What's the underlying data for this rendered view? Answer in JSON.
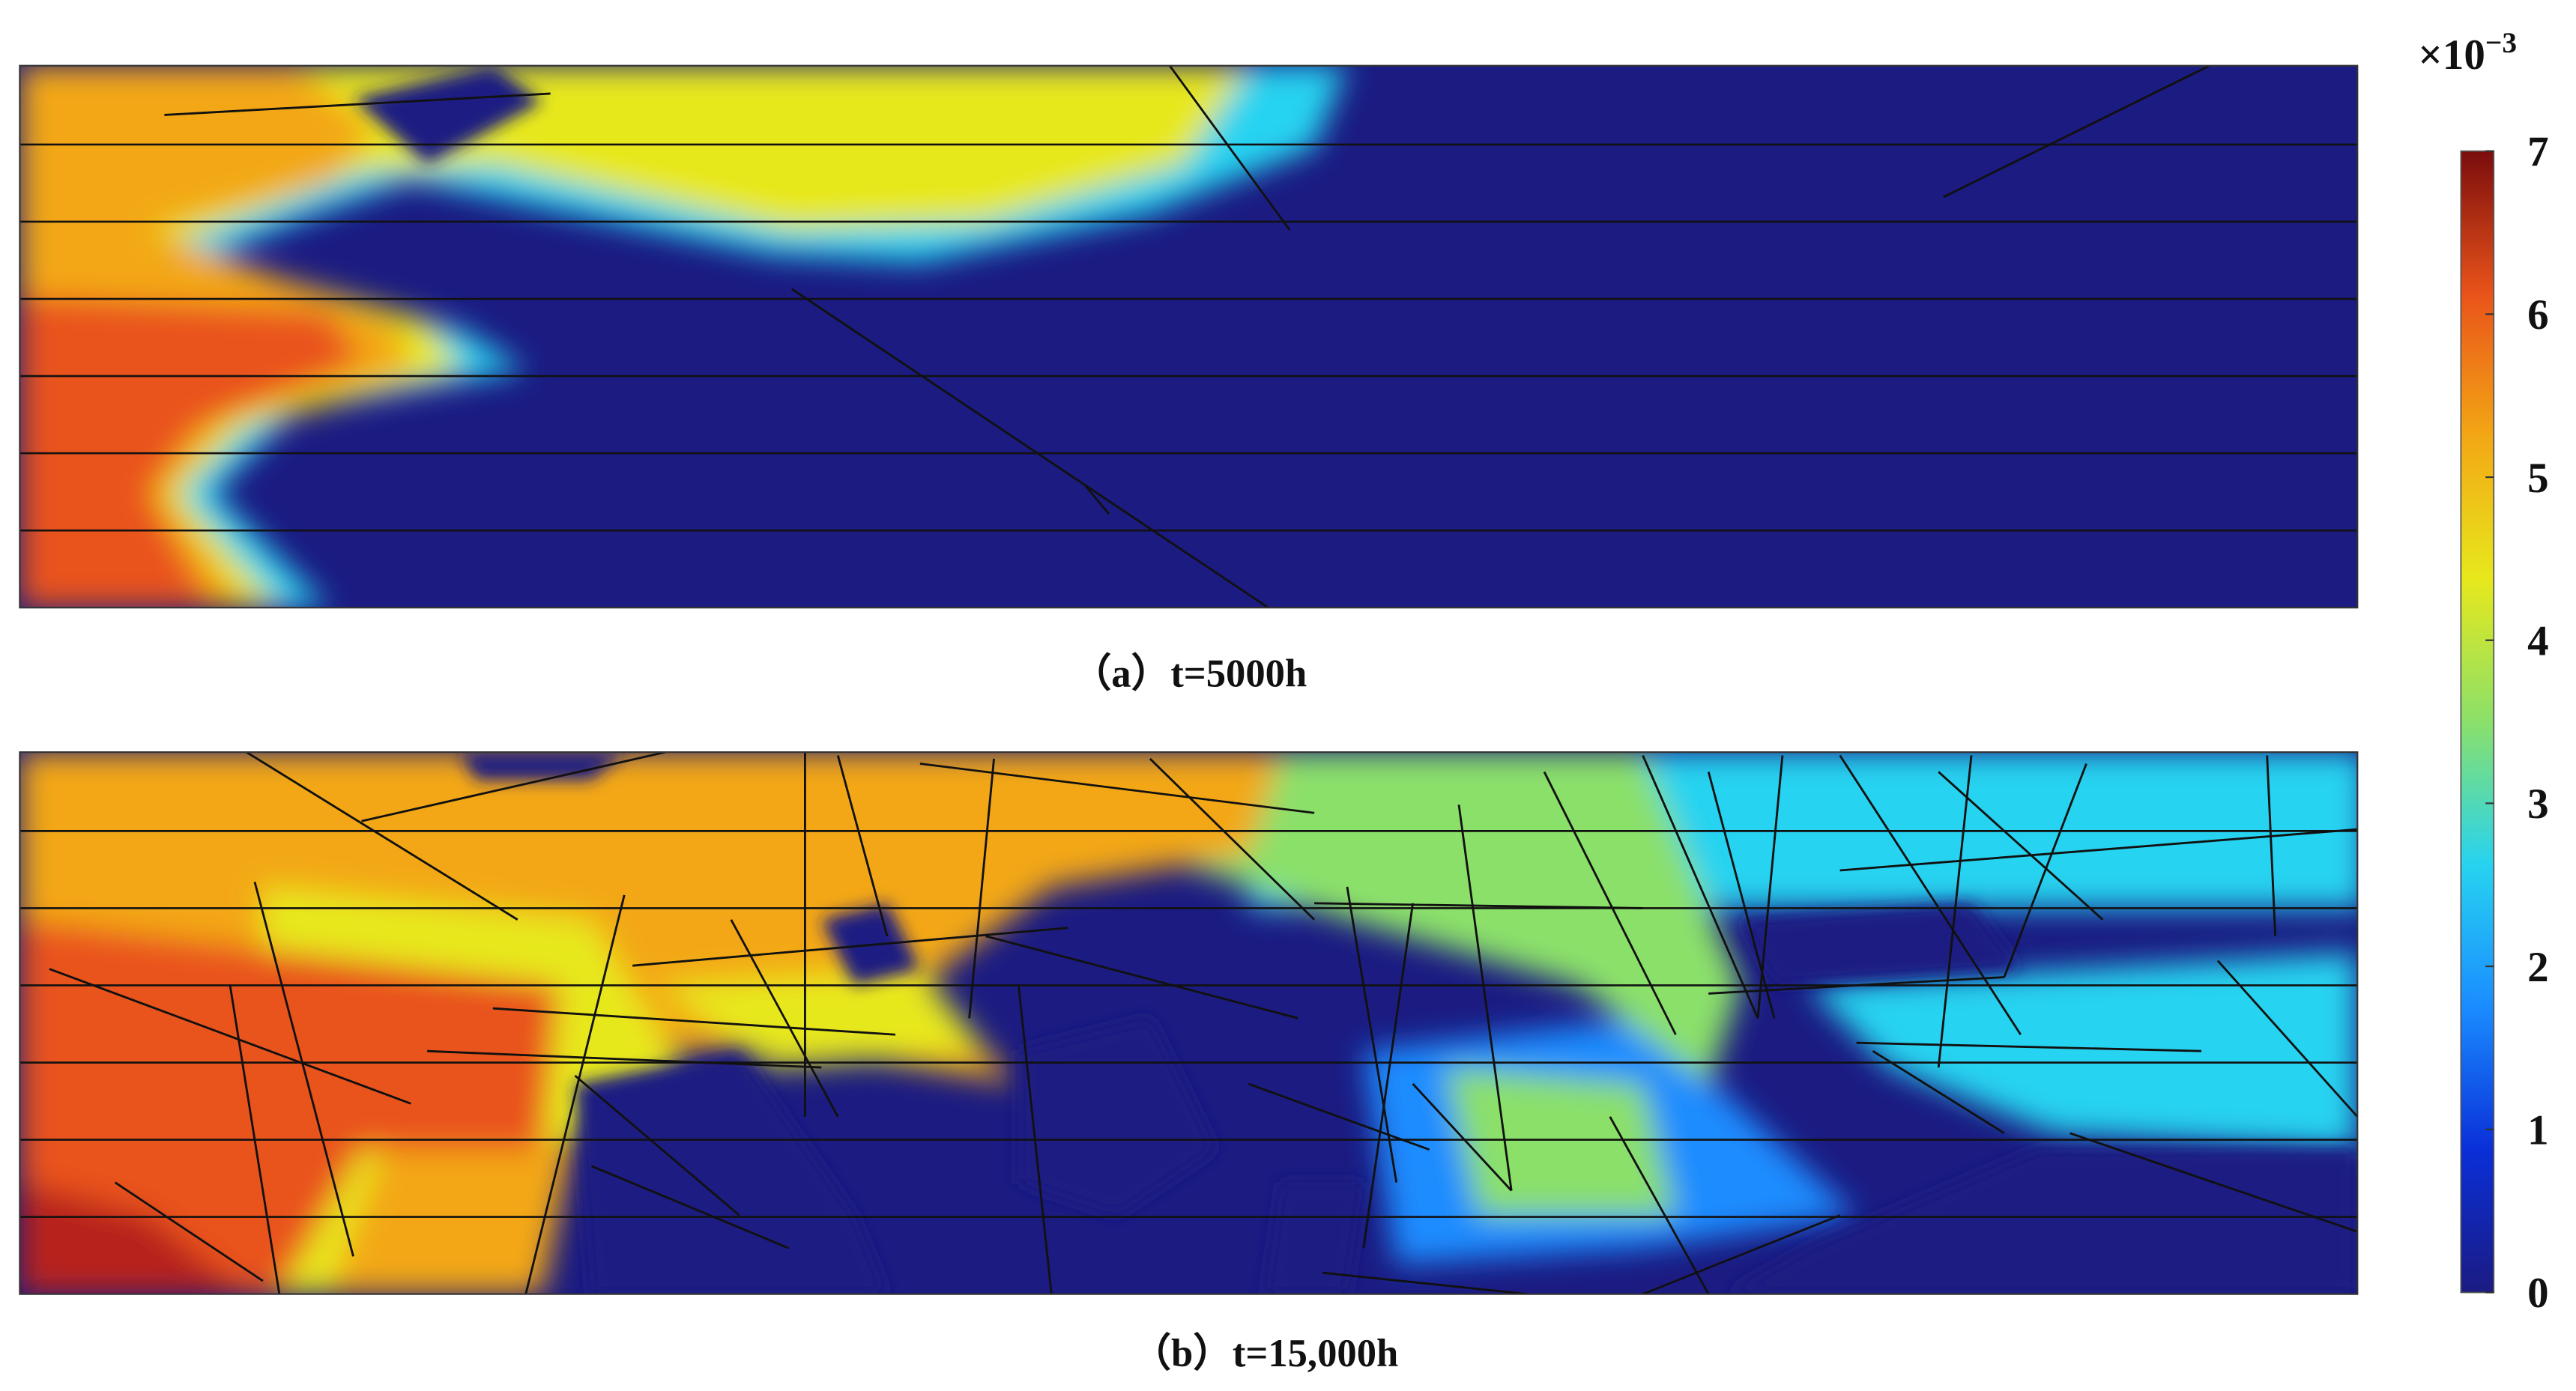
{
  "chart_data": {
    "type": "heatmap",
    "panels": [
      {
        "caption": "（a）t=5000h"
      },
      {
        "caption": "（b）t=15,000h"
      }
    ],
    "colorbar": {
      "multiplier": "×10",
      "exponent": "−3",
      "ylim": [
        0,
        7
      ],
      "yticks": [
        0,
        1,
        2,
        3,
        4,
        5,
        6,
        7
      ],
      "colormap": [
        "#1b1b82",
        "#0a2fd8",
        "#1a8cff",
        "#27d3f0",
        "#8be06a",
        "#e7e81c",
        "#f3a715",
        "#e9531a",
        "#7a0d0d"
      ]
    }
  }
}
